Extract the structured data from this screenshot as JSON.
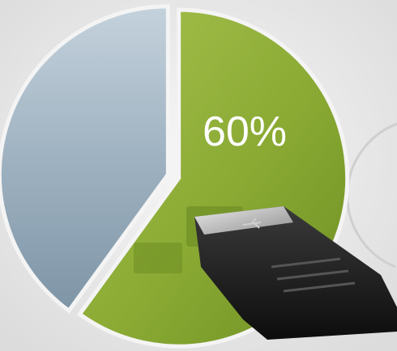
{
  "chart_data": {
    "type": "pie",
    "title": "",
    "slices": [
      {
        "name": "",
        "value": 60,
        "label": "60%",
        "color": "#8fb33a"
      },
      {
        "name": "",
        "value": 40,
        "label": "",
        "color": "#a9bccb"
      }
    ],
    "legend": "none",
    "grid": false
  },
  "decoration": {
    "background_color": "#ececec",
    "object_icon": "usb-flash-drive"
  }
}
